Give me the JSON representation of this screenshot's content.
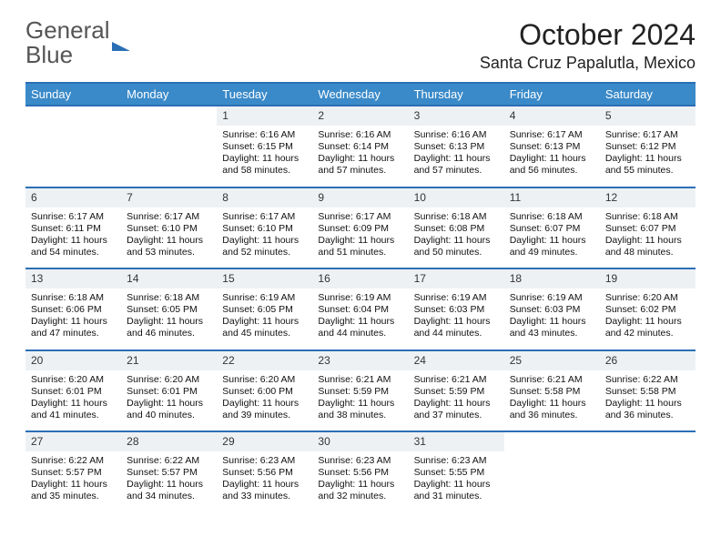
{
  "logo": {
    "part1": "General",
    "part2": "Blue"
  },
  "title": "October 2024",
  "location": "Santa Cruz Papalutla, Mexico",
  "colors": {
    "header_bg": "#3a8ac9",
    "header_border": "#2a6fb5",
    "daynum_bg": "#eef1f4",
    "page_bg": "#ffffff",
    "text": "#222222"
  },
  "weekdays": [
    "Sunday",
    "Monday",
    "Tuesday",
    "Wednesday",
    "Thursday",
    "Friday",
    "Saturday"
  ],
  "weeks": [
    {
      "days": [
        {
          "n": "",
          "sunrise": "",
          "sunset": "",
          "daylight": ""
        },
        {
          "n": "",
          "sunrise": "",
          "sunset": "",
          "daylight": ""
        },
        {
          "n": "1",
          "sunrise": "Sunrise: 6:16 AM",
          "sunset": "Sunset: 6:15 PM",
          "daylight": "Daylight: 11 hours and 58 minutes."
        },
        {
          "n": "2",
          "sunrise": "Sunrise: 6:16 AM",
          "sunset": "Sunset: 6:14 PM",
          "daylight": "Daylight: 11 hours and 57 minutes."
        },
        {
          "n": "3",
          "sunrise": "Sunrise: 6:16 AM",
          "sunset": "Sunset: 6:13 PM",
          "daylight": "Daylight: 11 hours and 57 minutes."
        },
        {
          "n": "4",
          "sunrise": "Sunrise: 6:17 AM",
          "sunset": "Sunset: 6:13 PM",
          "daylight": "Daylight: 11 hours and 56 minutes."
        },
        {
          "n": "5",
          "sunrise": "Sunrise: 6:17 AM",
          "sunset": "Sunset: 6:12 PM",
          "daylight": "Daylight: 11 hours and 55 minutes."
        }
      ]
    },
    {
      "days": [
        {
          "n": "6",
          "sunrise": "Sunrise: 6:17 AM",
          "sunset": "Sunset: 6:11 PM",
          "daylight": "Daylight: 11 hours and 54 minutes."
        },
        {
          "n": "7",
          "sunrise": "Sunrise: 6:17 AM",
          "sunset": "Sunset: 6:10 PM",
          "daylight": "Daylight: 11 hours and 53 minutes."
        },
        {
          "n": "8",
          "sunrise": "Sunrise: 6:17 AM",
          "sunset": "Sunset: 6:10 PM",
          "daylight": "Daylight: 11 hours and 52 minutes."
        },
        {
          "n": "9",
          "sunrise": "Sunrise: 6:17 AM",
          "sunset": "Sunset: 6:09 PM",
          "daylight": "Daylight: 11 hours and 51 minutes."
        },
        {
          "n": "10",
          "sunrise": "Sunrise: 6:18 AM",
          "sunset": "Sunset: 6:08 PM",
          "daylight": "Daylight: 11 hours and 50 minutes."
        },
        {
          "n": "11",
          "sunrise": "Sunrise: 6:18 AM",
          "sunset": "Sunset: 6:07 PM",
          "daylight": "Daylight: 11 hours and 49 minutes."
        },
        {
          "n": "12",
          "sunrise": "Sunrise: 6:18 AM",
          "sunset": "Sunset: 6:07 PM",
          "daylight": "Daylight: 11 hours and 48 minutes."
        }
      ]
    },
    {
      "days": [
        {
          "n": "13",
          "sunrise": "Sunrise: 6:18 AM",
          "sunset": "Sunset: 6:06 PM",
          "daylight": "Daylight: 11 hours and 47 minutes."
        },
        {
          "n": "14",
          "sunrise": "Sunrise: 6:18 AM",
          "sunset": "Sunset: 6:05 PM",
          "daylight": "Daylight: 11 hours and 46 minutes."
        },
        {
          "n": "15",
          "sunrise": "Sunrise: 6:19 AM",
          "sunset": "Sunset: 6:05 PM",
          "daylight": "Daylight: 11 hours and 45 minutes."
        },
        {
          "n": "16",
          "sunrise": "Sunrise: 6:19 AM",
          "sunset": "Sunset: 6:04 PM",
          "daylight": "Daylight: 11 hours and 44 minutes."
        },
        {
          "n": "17",
          "sunrise": "Sunrise: 6:19 AM",
          "sunset": "Sunset: 6:03 PM",
          "daylight": "Daylight: 11 hours and 44 minutes."
        },
        {
          "n": "18",
          "sunrise": "Sunrise: 6:19 AM",
          "sunset": "Sunset: 6:03 PM",
          "daylight": "Daylight: 11 hours and 43 minutes."
        },
        {
          "n": "19",
          "sunrise": "Sunrise: 6:20 AM",
          "sunset": "Sunset: 6:02 PM",
          "daylight": "Daylight: 11 hours and 42 minutes."
        }
      ]
    },
    {
      "days": [
        {
          "n": "20",
          "sunrise": "Sunrise: 6:20 AM",
          "sunset": "Sunset: 6:01 PM",
          "daylight": "Daylight: 11 hours and 41 minutes."
        },
        {
          "n": "21",
          "sunrise": "Sunrise: 6:20 AM",
          "sunset": "Sunset: 6:01 PM",
          "daylight": "Daylight: 11 hours and 40 minutes."
        },
        {
          "n": "22",
          "sunrise": "Sunrise: 6:20 AM",
          "sunset": "Sunset: 6:00 PM",
          "daylight": "Daylight: 11 hours and 39 minutes."
        },
        {
          "n": "23",
          "sunrise": "Sunrise: 6:21 AM",
          "sunset": "Sunset: 5:59 PM",
          "daylight": "Daylight: 11 hours and 38 minutes."
        },
        {
          "n": "24",
          "sunrise": "Sunrise: 6:21 AM",
          "sunset": "Sunset: 5:59 PM",
          "daylight": "Daylight: 11 hours and 37 minutes."
        },
        {
          "n": "25",
          "sunrise": "Sunrise: 6:21 AM",
          "sunset": "Sunset: 5:58 PM",
          "daylight": "Daylight: 11 hours and 36 minutes."
        },
        {
          "n": "26",
          "sunrise": "Sunrise: 6:22 AM",
          "sunset": "Sunset: 5:58 PM",
          "daylight": "Daylight: 11 hours and 36 minutes."
        }
      ]
    },
    {
      "days": [
        {
          "n": "27",
          "sunrise": "Sunrise: 6:22 AM",
          "sunset": "Sunset: 5:57 PM",
          "daylight": "Daylight: 11 hours and 35 minutes."
        },
        {
          "n": "28",
          "sunrise": "Sunrise: 6:22 AM",
          "sunset": "Sunset: 5:57 PM",
          "daylight": "Daylight: 11 hours and 34 minutes."
        },
        {
          "n": "29",
          "sunrise": "Sunrise: 6:23 AM",
          "sunset": "Sunset: 5:56 PM",
          "daylight": "Daylight: 11 hours and 33 minutes."
        },
        {
          "n": "30",
          "sunrise": "Sunrise: 6:23 AM",
          "sunset": "Sunset: 5:56 PM",
          "daylight": "Daylight: 11 hours and 32 minutes."
        },
        {
          "n": "31",
          "sunrise": "Sunrise: 6:23 AM",
          "sunset": "Sunset: 5:55 PM",
          "daylight": "Daylight: 11 hours and 31 minutes."
        },
        {
          "n": "",
          "sunrise": "",
          "sunset": "",
          "daylight": ""
        },
        {
          "n": "",
          "sunrise": "",
          "sunset": "",
          "daylight": ""
        }
      ]
    }
  ]
}
